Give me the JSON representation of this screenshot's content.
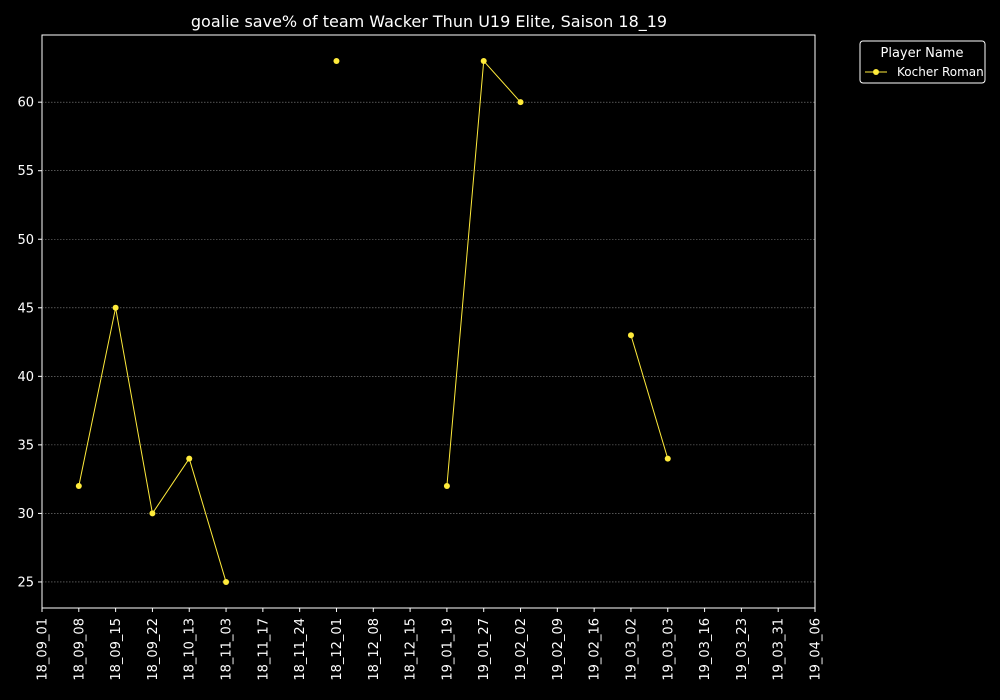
{
  "chart_data": {
    "type": "line",
    "title": "goalie save% of team Wacker Thun U19 Elite, Saison 18_19",
    "xlabel": "",
    "ylabel": "",
    "x_categories": [
      "18_09_01",
      "18_09_08",
      "18_09_15",
      "18_09_22",
      "18_10_13",
      "18_11_03",
      "18_11_17",
      "18_11_24",
      "18_12_01",
      "18_12_08",
      "18_12_15",
      "19_01_19",
      "19_01_27",
      "19_02_02",
      "19_02_09",
      "19_02_16",
      "19_03_02",
      "19_03_03",
      "19_03_16",
      "19_03_23",
      "19_03_31",
      "19_04_06"
    ],
    "y_ticks": [
      25,
      30,
      35,
      40,
      45,
      50,
      55,
      60
    ],
    "ylim": [
      23.1,
      64.9
    ],
    "grid": "horizontal dotted",
    "legend": {
      "title": "Player Name",
      "placement": "outside top-right"
    },
    "series": [
      {
        "name": "Kocher Roman",
        "color": "#ffeb3b",
        "values": [
          null,
          32,
          45,
          30,
          34,
          25,
          null,
          null,
          63,
          null,
          null,
          32,
          63,
          60,
          null,
          null,
          43,
          34,
          null,
          null,
          null,
          null
        ]
      }
    ]
  }
}
